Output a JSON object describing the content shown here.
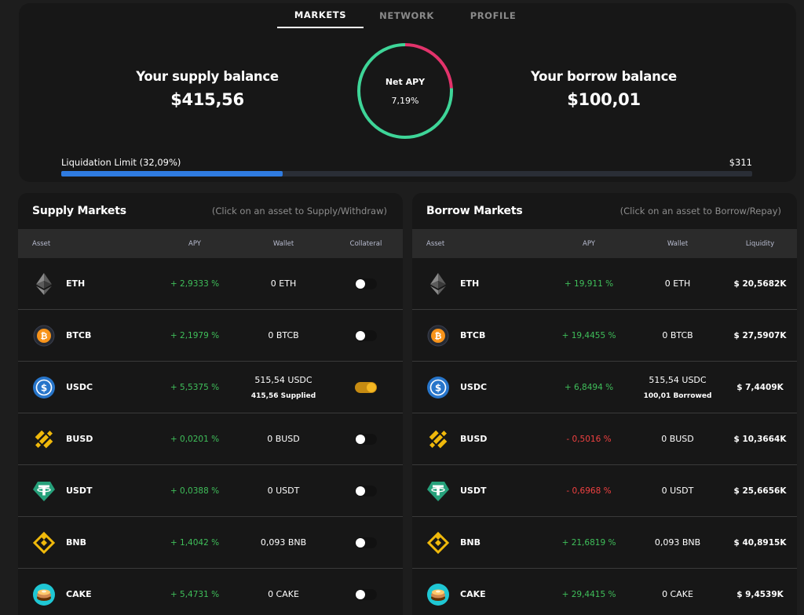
{
  "tabs": [
    "MARKETS",
    "NETWORK",
    "PROFILE"
  ],
  "summary": {
    "supply_label": "Your supply balance",
    "supply_value": "$415,56",
    "borrow_label": "Your borrow balance",
    "borrow_value": "$100,01",
    "net_apy_label": "Net APY",
    "net_apy_value": "7,19%",
    "ring_fraction_green": 0.76,
    "ring_colors": {
      "green": "#3ed598",
      "pink": "#e2336b"
    },
    "liquidation_label": "Liquidation Limit (32,09%)",
    "liquidation_max": "$311",
    "liquidation_fraction": 0.3209,
    "liquidation_color": "#2f7be0"
  },
  "supply": {
    "title": "Supply Markets",
    "hint": "(Click on an asset to Supply/Withdraw)",
    "columns": [
      "Asset",
      "APY",
      "Wallet",
      "Collateral"
    ],
    "rows": [
      {
        "icon": "eth-icon",
        "asset": "ETH",
        "apy": "+ 2,9333 %",
        "wallet": "0 ETH",
        "sub": "",
        "collateral": false
      },
      {
        "icon": "btcb-icon",
        "asset": "BTCB",
        "apy": "+ 2,1979 %",
        "wallet": "0 BTCB",
        "sub": "",
        "collateral": false
      },
      {
        "icon": "usdc-icon",
        "asset": "USDC",
        "apy": "+ 5,5375 %",
        "wallet": "515,54 USDC",
        "sub": "415,56 Supplied",
        "collateral": true
      },
      {
        "icon": "busd-icon",
        "asset": "BUSD",
        "apy": "+ 0,0201 %",
        "wallet": "0 BUSD",
        "sub": "",
        "collateral": false
      },
      {
        "icon": "usdt-icon",
        "asset": "USDT",
        "apy": "+ 0,0388 %",
        "wallet": "0 USDT",
        "sub": "",
        "collateral": false
      },
      {
        "icon": "bnb-icon",
        "asset": "BNB",
        "apy": "+ 1,4042 %",
        "wallet": "0,093 BNB",
        "sub": "",
        "collateral": false
      },
      {
        "icon": "cake-icon",
        "asset": "CAKE",
        "apy": "+ 5,4731 %",
        "wallet": "0 CAKE",
        "sub": "",
        "collateral": false
      }
    ]
  },
  "borrow": {
    "title": "Borrow Markets",
    "hint": "(Click on an asset to Borrow/Repay)",
    "columns": [
      "Asset",
      "APY",
      "Wallet",
      "Liquidity"
    ],
    "rows": [
      {
        "icon": "eth-icon",
        "asset": "ETH",
        "apy": "+ 19,911 %",
        "negative": false,
        "wallet": "0 ETH",
        "sub": "",
        "liquidity": "$ 20,5682K"
      },
      {
        "icon": "btcb-icon",
        "asset": "BTCB",
        "apy": "+ 19,4455 %",
        "negative": false,
        "wallet": "0 BTCB",
        "sub": "",
        "liquidity": "$ 27,5907K"
      },
      {
        "icon": "usdc-icon",
        "asset": "USDC",
        "apy": "+ 6,8494 %",
        "negative": false,
        "wallet": "515,54 USDC",
        "sub": "100,01 Borrowed",
        "liquidity": "$ 7,4409K"
      },
      {
        "icon": "busd-icon",
        "asset": "BUSD",
        "apy": "- 0,5016 %",
        "negative": true,
        "wallet": "0 BUSD",
        "sub": "",
        "liquidity": "$ 10,3664K"
      },
      {
        "icon": "usdt-icon",
        "asset": "USDT",
        "apy": "- 0,6968 %",
        "negative": true,
        "wallet": "0 USDT",
        "sub": "",
        "liquidity": "$ 25,6656K"
      },
      {
        "icon": "bnb-icon",
        "asset": "BNB",
        "apy": "+ 21,6819 %",
        "negative": false,
        "wallet": "0,093 BNB",
        "sub": "",
        "liquidity": "$ 40,8915K"
      },
      {
        "icon": "cake-icon",
        "asset": "CAKE",
        "apy": "+ 29,4415 %",
        "negative": false,
        "wallet": "0 CAKE",
        "sub": "",
        "liquidity": "$ 9,4539K"
      }
    ]
  }
}
